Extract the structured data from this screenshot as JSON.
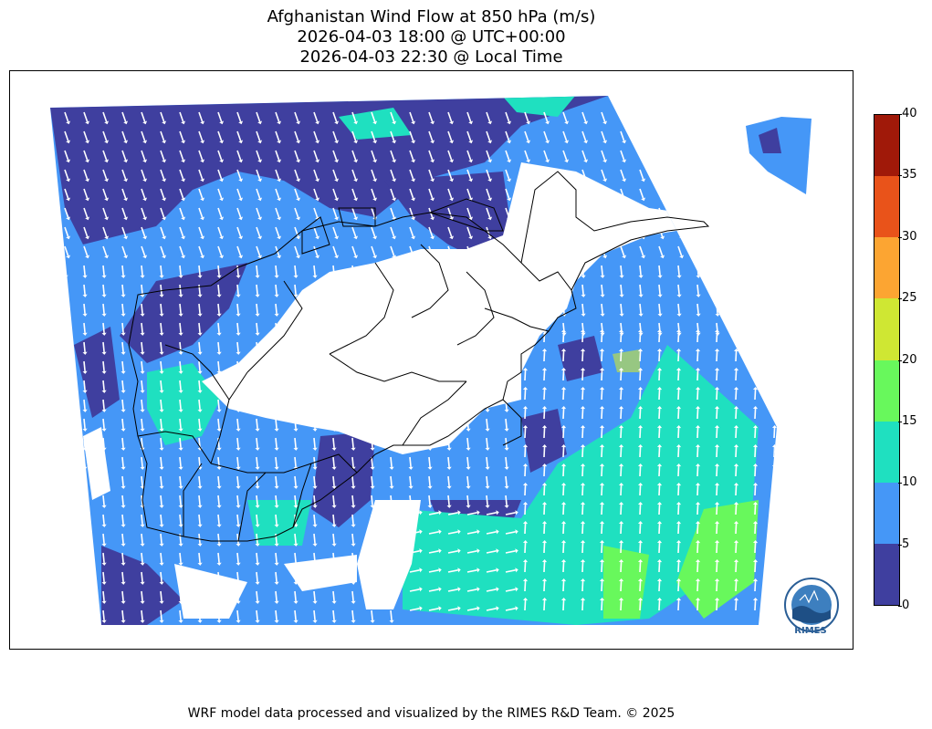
{
  "title_lines": [
    "Afghanistan Wind Flow at 850 hPa (m/s)",
    "2026-04-03 18:00 @ UTC+00:00",
    "2026-04-03 22:30 @ Local Time"
  ],
  "colorbar": {
    "ticks": [
      "0",
      "5",
      "10",
      "15",
      "20",
      "25",
      "30",
      "35",
      "40"
    ],
    "colors": [
      "#3f3f9f",
      "#4597f7",
      "#1fe0c0",
      "#68f85c",
      "#cfe733",
      "#fca532",
      "#e9531a",
      "#a01909"
    ],
    "range": [
      0,
      40
    ]
  },
  "footer": "WRF model data processed and visualized by the RIMES R&D Team. © 2025",
  "logo": {
    "text": "RIMES",
    "icon": "rimes-logo-icon"
  }
}
